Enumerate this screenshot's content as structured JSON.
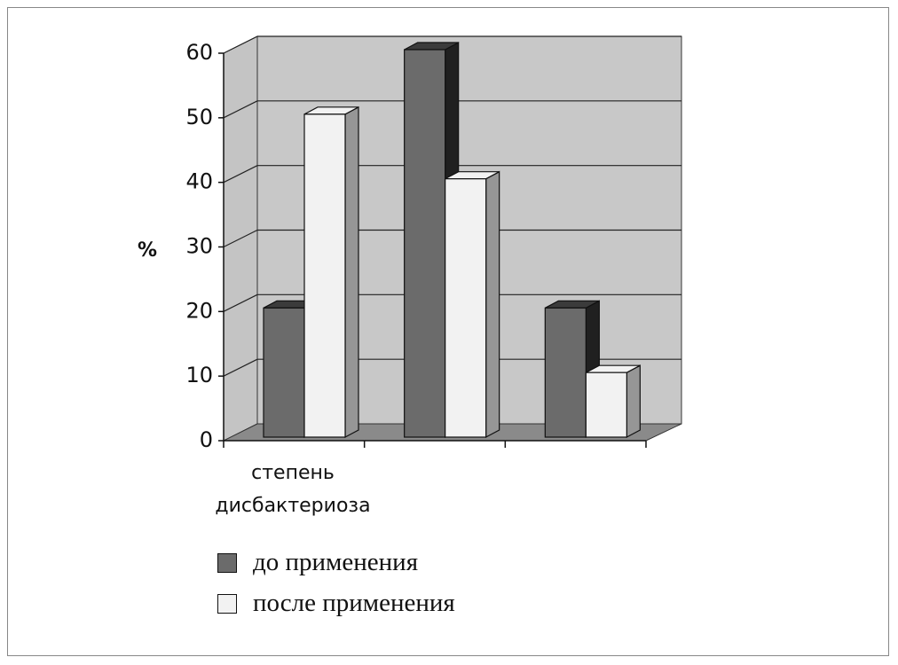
{
  "chart_data": {
    "type": "bar3d",
    "y_label": "%",
    "categories": [
      "степень дисбактериоза",
      null,
      null
    ],
    "series": [
      {
        "name": "до применения",
        "color": "#6b6b6b",
        "values": [
          20,
          60,
          20
        ]
      },
      {
        "name": "после применения",
        "color": "#f2f2f2",
        "values": [
          50,
          40,
          10
        ]
      }
    ],
    "ylim": [
      0,
      60
    ],
    "yticks": [
      0,
      10,
      20,
      30,
      40,
      50,
      60
    ],
    "grid": true
  }
}
